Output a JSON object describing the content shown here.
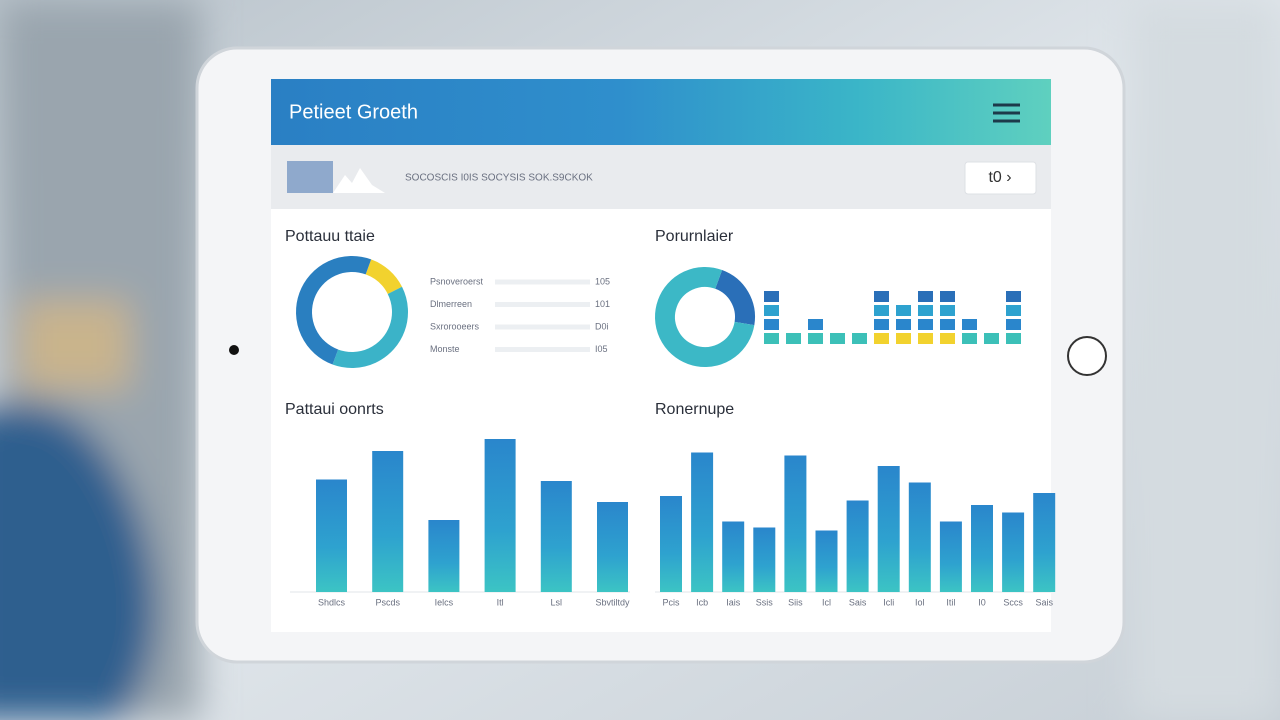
{
  "header": {
    "title": "Petieet Groeth"
  },
  "toolbar": {
    "text": "SOCOSCIS  I0IS  SOCYSIS  SOK.S9CKOK",
    "button": "t0 ›"
  },
  "panels": [
    {
      "title": "Pottauu ttaie",
      "type": "donut",
      "segments": [
        {
          "value": 12,
          "color": "#f2d22e"
        },
        {
          "value": 38,
          "color": "#3bb3c8"
        },
        {
          "value": 50,
          "color": "#2a7fc0"
        }
      ],
      "legend": [
        {
          "label": "Psnoveroerst",
          "value": "105"
        },
        {
          "label": "Dlmerreen",
          "value": "101"
        },
        {
          "label": "Sxrorooeers",
          "value": "D0i"
        },
        {
          "label": "Monste",
          "value": "I05"
        }
      ]
    },
    {
      "title": "Porurnlaier",
      "type": "donut",
      "segments": [
        {
          "value": 22,
          "color": "#2a6fb8"
        },
        {
          "value": 78,
          "color": "#3cb8c6"
        }
      ],
      "stacks": [
        4,
        1,
        2,
        1,
        1,
        4,
        3,
        4,
        4,
        2,
        1,
        4
      ]
    },
    {
      "title": "Pattaui oonrts",
      "type": "bar",
      "categories": [
        "Shdlcs",
        "Pscds",
        "Ielcs",
        "Itl",
        "Lsl",
        "Sbvtiltdy"
      ],
      "values": [
        75,
        94,
        48,
        102,
        74,
        60
      ]
    },
    {
      "title": "Ronernupe",
      "type": "bar",
      "categories": [
        "Pcis",
        "Icb",
        "Iais",
        "Ssis",
        "Siis",
        "Icl",
        "Sais",
        "Icli",
        "Iol",
        "Itil",
        "I0",
        "Sccs",
        "Sais"
      ],
      "values": [
        64,
        93,
        47,
        43,
        91,
        41,
        61,
        84,
        73,
        47,
        58,
        53,
        66
      ]
    }
  ]
}
